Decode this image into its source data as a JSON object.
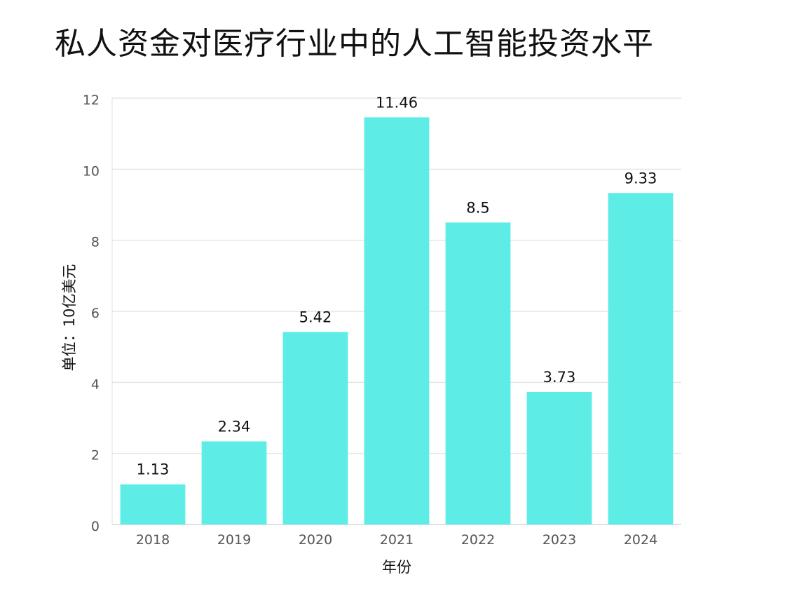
{
  "chart_data": {
    "type": "bar",
    "title": "私人资金对医疗行业中的人工智能投资水平",
    "xlabel": "年份",
    "ylabel": "单位：10亿美元",
    "categories": [
      "2018",
      "2019",
      "2020",
      "2021",
      "2022",
      "2023",
      "2024"
    ],
    "values": [
      1.13,
      2.34,
      5.42,
      11.46,
      8.5,
      3.73,
      9.33
    ],
    "value_labels": [
      "1.13",
      "2.34",
      "5.42",
      "11.46",
      "8.5",
      "3.73",
      "9.33"
    ],
    "ylim": [
      0,
      12
    ],
    "yticks": [
      0,
      2,
      4,
      6,
      8,
      10,
      12
    ],
    "grid": true,
    "bar_color": "#5eede6",
    "grid_color": "#e6e6e6"
  }
}
